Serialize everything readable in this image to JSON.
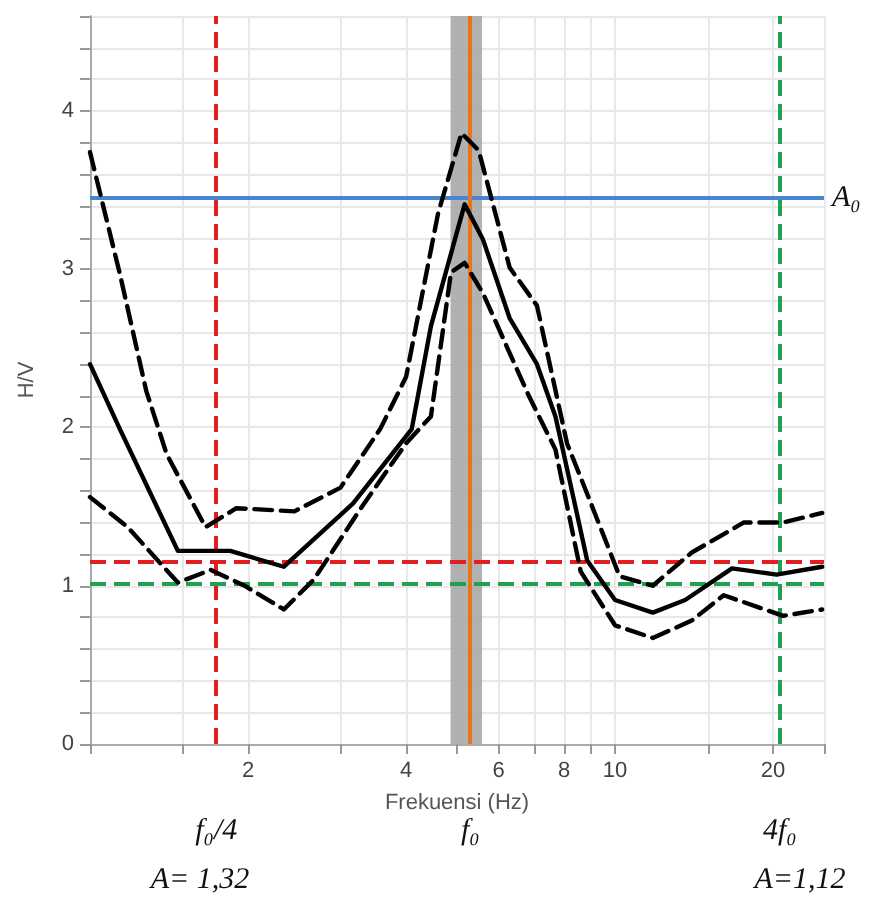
{
  "chart_data": {
    "type": "line",
    "xlabel": "Frekuensi (Hz)",
    "ylabel": "H/V",
    "log": "x",
    "grid": true,
    "marker": "none",
    "xlim": [
      1,
      25
    ],
    "xticks": [
      {
        "value": 1,
        "label": null
      },
      {
        "value": 1.5,
        "label": null
      },
      2,
      {
        "value": 3,
        "label": null
      },
      4,
      {
        "value": 5,
        "label": null
      },
      6,
      {
        "value": 7,
        "label": null
      },
      8,
      {
        "value": 9,
        "label": null
      },
      10,
      {
        "value": 15,
        "label": null
      },
      20,
      {
        "value": 25,
        "label": null
      }
    ],
    "ylim": [
      0,
      4.6
    ],
    "yticks": [
      0,
      {
        "value": 0.2,
        "label": null
      },
      {
        "value": 0.4,
        "label": null
      },
      {
        "value": 0.6,
        "label": null
      },
      {
        "value": 0.8,
        "label": null
      },
      1,
      {
        "value": 1.2,
        "label": null
      },
      {
        "value": 1.4,
        "label": null
      },
      {
        "value": 1.6,
        "label": null
      },
      {
        "value": 1.8,
        "label": null
      },
      2,
      {
        "value": 2.2,
        "label": null
      },
      {
        "value": 2.4,
        "label": null
      },
      {
        "value": 2.6,
        "label": null
      },
      {
        "value": 2.8,
        "label": null
      },
      3,
      {
        "value": 3.2,
        "label": null
      },
      {
        "value": 3.4,
        "label": null
      },
      {
        "value": 3.6,
        "label": null
      },
      {
        "value": 3.8,
        "label": null
      },
      4,
      {
        "value": 4.2,
        "label": null
      },
      {
        "value": 4.4,
        "label": null
      },
      {
        "value": 4.6,
        "label": null
      }
    ],
    "series": [
      {
        "color": "#000000",
        "line_style": "solid",
        "x": [
          1.0,
          1.14,
          1.47,
          1.85,
          2.34,
          3.17,
          4.1,
          4.46,
          5.17,
          5.6,
          6.3,
          7.1,
          7.7,
          8.1,
          8.85,
          10.0,
          11.8,
          13.6,
          16.7,
          20.3,
          24.8
        ],
        "values": [
          2.4,
          1.99,
          1.22,
          1.22,
          1.12,
          1.52,
          1.99,
          2.64,
          3.41,
          3.19,
          2.69,
          2.4,
          2.07,
          1.74,
          1.16,
          0.91,
          0.83,
          0.91,
          1.11,
          1.07,
          1.12
        ]
      },
      {
        "color": "#000000",
        "line_style": "dashed",
        "x": [
          1.0,
          1.14,
          1.28,
          1.4,
          1.66,
          1.9,
          2.45,
          3.0,
          3.57,
          4.0,
          4.6,
          5.1,
          5.5,
          6.3,
          7.1,
          8.1,
          8.85,
          10.2,
          11.8,
          14.0,
          17.6,
          20.9,
          24.8
        ],
        "values": [
          3.74,
          2.97,
          2.23,
          1.83,
          1.37,
          1.49,
          1.47,
          1.62,
          1.99,
          2.32,
          3.35,
          3.86,
          3.75,
          3.01,
          2.77,
          1.9,
          1.58,
          1.06,
          1.0,
          1.21,
          1.4,
          1.4,
          1.46
        ]
      },
      {
        "color": "#000000",
        "line_style": "dashed",
        "x": [
          1.0,
          1.18,
          1.47,
          1.7,
          1.97,
          2.34,
          2.67,
          3.28,
          4.0,
          4.46,
          4.87,
          5.17,
          5.6,
          6.85,
          7.7,
          8.6,
          10.0,
          11.8,
          14.0,
          16.1,
          20.9,
          24.8
        ],
        "values": [
          1.56,
          1.37,
          1.02,
          1.1,
          1.0,
          0.85,
          1.04,
          1.49,
          1.9,
          2.07,
          2.98,
          3.04,
          2.85,
          2.2,
          1.86,
          1.09,
          0.75,
          0.67,
          0.78,
          0.94,
          0.81,
          0.85
        ]
      }
    ],
    "bands": [
      {
        "axis": "x",
        "from": 4.86,
        "to": 5.58,
        "color": "#a8a8a8"
      }
    ],
    "ref_lines": [
      {
        "axis": "y",
        "value": 3.45,
        "label": "A₀",
        "color": "#4a86d0",
        "line_style": "solid"
      },
      {
        "axis": "x",
        "value": 5.3,
        "label": "f₀",
        "color": "#e8741c",
        "line_style": "solid"
      },
      {
        "axis": "y",
        "value": 1.15,
        "color": "#e02020",
        "line_style": "dashed"
      },
      {
        "axis": "x",
        "value": 1.74,
        "label": "f₀/4",
        "color": "#e02020",
        "line_style": "dashed"
      },
      {
        "axis": "y",
        "value": 1.02,
        "color": "#20a050",
        "line_style": "dashed"
      },
      {
        "axis": "x",
        "value": 20.6,
        "label": "4f₀",
        "color": "#20a050",
        "line_style": "dashed"
      }
    ],
    "annotations": [
      "A= 1,32",
      "A=1,12"
    ]
  }
}
